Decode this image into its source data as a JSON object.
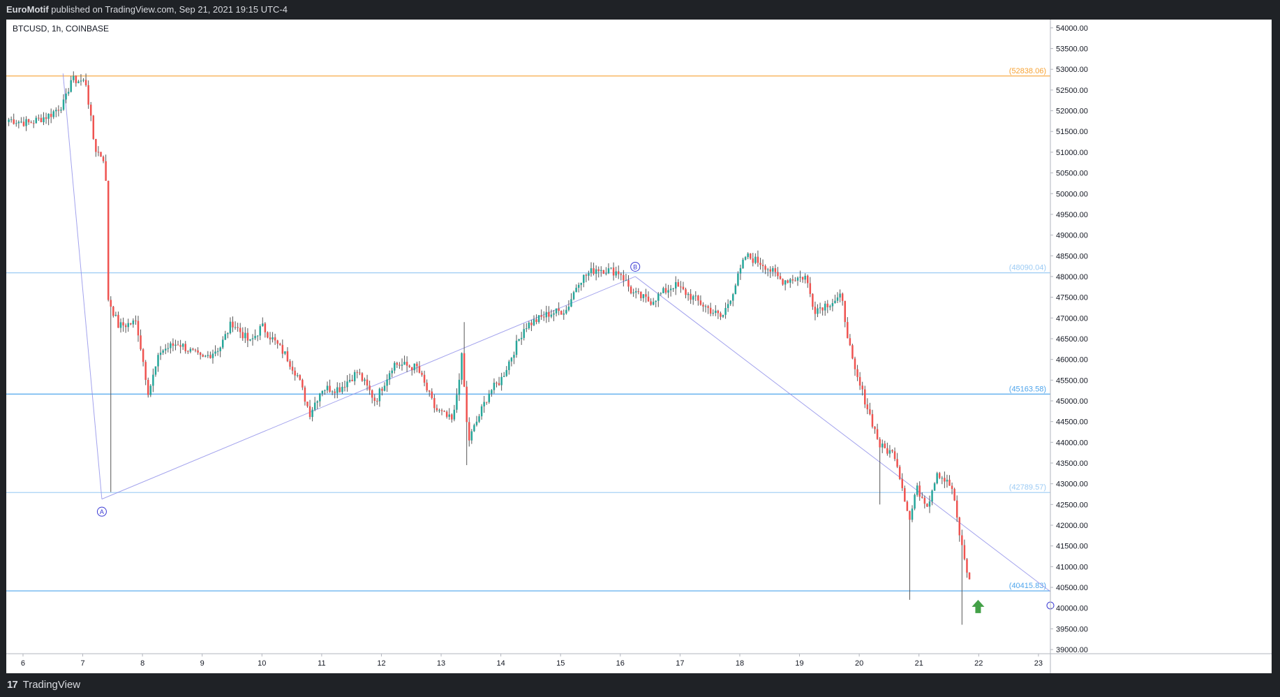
{
  "header": {
    "publisher": "EuroMotif",
    "published_text": "published on TradingView.com, Sep 21, 2021 19:15 UTC-4"
  },
  "chart": {
    "symbol_label": "BTCUSD, 1h, COINBASE"
  },
  "footer": {
    "brand": "TradingView",
    "logo_mark": "17"
  },
  "colors": {
    "up": "#26a69a",
    "down": "#ef5350",
    "orange_level": "#f7a233",
    "blue_level": "#64b5f6",
    "pattern": "#8c8ce8",
    "arrow": "#43a047"
  },
  "chart_data": {
    "type": "candlestick",
    "title": "",
    "symbol": "BTCUSD",
    "interval": "1h",
    "exchange": "COINBASE",
    "ylim": [
      38900,
      54200
    ],
    "yticks": [
      54000,
      53500,
      53000,
      52500,
      52000,
      51500,
      51000,
      50500,
      50000,
      49500,
      49000,
      48500,
      48000,
      47500,
      47000,
      46500,
      46000,
      45500,
      45000,
      44500,
      44000,
      43500,
      43000,
      42500,
      42000,
      41500,
      41000,
      40500,
      40000,
      39500,
      39000
    ],
    "ytick_labels": [
      "54000.00",
      "53500.00",
      "53000.00",
      "52500.00",
      "52000.00",
      "51500.00",
      "51000.00",
      "50500.00",
      "50000.00",
      "49500.00",
      "49000.00",
      "48500.00",
      "48000.00",
      "47500.00",
      "47000.00",
      "46500.00",
      "46000.00",
      "45500.00",
      "45000.00",
      "44500.00",
      "44000.00",
      "43500.00",
      "43000.00",
      "42500.00",
      "42000.00",
      "41500.00",
      "41000.00",
      "40500.00",
      "40000.00",
      "39500.00",
      "39000.00"
    ],
    "xlim": [
      5.72,
      23.2
    ],
    "xticks": [
      6,
      7,
      8,
      9,
      10,
      11,
      12,
      13,
      14,
      15,
      16,
      17,
      18,
      19,
      20,
      21,
      22,
      23
    ],
    "xtick_labels": [
      "6",
      "7",
      "8",
      "9",
      "10",
      "11",
      "12",
      "13",
      "14",
      "15",
      "16",
      "17",
      "18",
      "19",
      "20",
      "21",
      "22",
      "23"
    ],
    "levels": [
      {
        "value": 52838.06,
        "label": "(52838.06)",
        "color": "#f7a233"
      },
      {
        "value": 48090.04,
        "label": "(48090.04)",
        "color": "#9ccbf4"
      },
      {
        "value": 45163.58,
        "label": "(45163.58)",
        "color": "#4ea5ec"
      },
      {
        "value": 42789.57,
        "label": "(42789.57)",
        "color": "#9ccbf4"
      },
      {
        "value": 40415.83,
        "label": "(40415.83)",
        "color": "#4ea5ec"
      }
    ],
    "pattern_points": [
      {
        "x": 6.67,
        "y": 52900,
        "label": ""
      },
      {
        "x": 7.32,
        "y": 42630,
        "label": "A"
      },
      {
        "x": 16.25,
        "y": 48000,
        "label": "B"
      },
      {
        "x": 23.2,
        "y": 40400,
        "label": ""
      }
    ],
    "path_anchors": [
      [
        5.72,
        51800
      ],
      [
        6.1,
        51700
      ],
      [
        6.45,
        51900
      ],
      [
        6.7,
        52200
      ],
      [
        6.8,
        52750
      ],
      [
        7.05,
        52700
      ],
      [
        7.2,
        51100
      ],
      [
        7.38,
        50800
      ],
      [
        7.42,
        47500
      ],
      [
        7.6,
        46800
      ],
      [
        7.9,
        46900
      ],
      [
        8.1,
        45200
      ],
      [
        8.3,
        46200
      ],
      [
        8.6,
        46400
      ],
      [
        9.0,
        46000
      ],
      [
        9.3,
        46300
      ],
      [
        9.5,
        46900
      ],
      [
        9.8,
        46400
      ],
      [
        10.0,
        46800
      ],
      [
        10.4,
        46100
      ],
      [
        10.6,
        45600
      ],
      [
        10.8,
        44700
      ],
      [
        11.0,
        45300
      ],
      [
        11.3,
        45300
      ],
      [
        11.6,
        45700
      ],
      [
        11.9,
        45000
      ],
      [
        12.2,
        45900
      ],
      [
        12.6,
        45800
      ],
      [
        12.9,
        44800
      ],
      [
        13.2,
        44500
      ],
      [
        13.35,
        46100
      ],
      [
        13.45,
        44000
      ],
      [
        13.8,
        45200
      ],
      [
        14.0,
        45500
      ],
      [
        14.4,
        46800
      ],
      [
        14.8,
        47100
      ],
      [
        15.1,
        47200
      ],
      [
        15.3,
        47900
      ],
      [
        15.6,
        48200
      ],
      [
        16.0,
        48100
      ],
      [
        16.2,
        47600
      ],
      [
        16.5,
        47400
      ],
      [
        16.9,
        47800
      ],
      [
        17.3,
        47400
      ],
      [
        17.7,
        47000
      ],
      [
        17.9,
        47700
      ],
      [
        18.1,
        48500
      ],
      [
        18.4,
        48300
      ],
      [
        18.7,
        47900
      ],
      [
        19.1,
        48000
      ],
      [
        19.25,
        47200
      ],
      [
        19.7,
        47500
      ],
      [
        19.9,
        45800
      ],
      [
        20.1,
        45000
      ],
      [
        20.35,
        43900
      ],
      [
        20.6,
        43700
      ],
      [
        20.85,
        42100
      ],
      [
        20.95,
        42900
      ],
      [
        21.15,
        42500
      ],
      [
        21.3,
        43300
      ],
      [
        21.55,
        42900
      ],
      [
        21.7,
        41600
      ],
      [
        21.85,
        40600
      ]
    ]
  }
}
